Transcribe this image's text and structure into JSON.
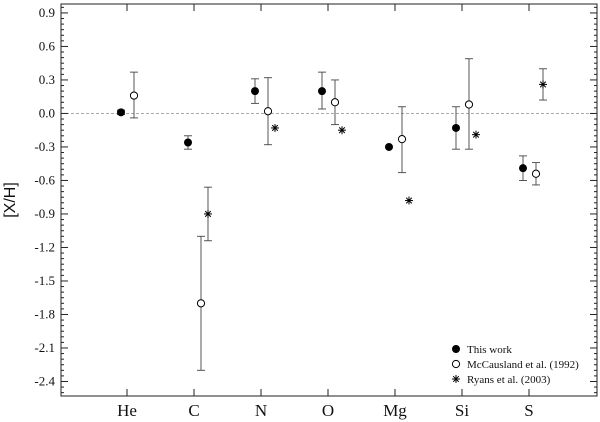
{
  "chart_data": {
    "type": "scatter",
    "title": "",
    "xlabel": "",
    "ylabel": "[X/H]",
    "categories": [
      "He",
      "C",
      "N",
      "O",
      "Mg",
      "Si",
      "S"
    ],
    "ylim": [
      -2.53,
      0.98
    ],
    "yticks": [
      0.9,
      0.6,
      0.3,
      0.0,
      -0.3,
      -0.6,
      -0.9,
      -1.2,
      -1.5,
      -1.8,
      -2.1,
      -2.4
    ],
    "ytick_labels": [
      "0.9",
      "0.6",
      "0.3",
      "0.0",
      "-0.3",
      "-0.6",
      "-0.9",
      "-1.2",
      "-1.5",
      "-1.8",
      "-2.1",
      "-2.4"
    ],
    "reference_line": 0.0,
    "grid": false,
    "legend_position": "bottom-right",
    "series": [
      {
        "name": "This work",
        "marker": "filled-circle",
        "points": [
          {
            "category": "He",
            "y": 0.01,
            "err_low": 0.02,
            "err_high": 0.02
          },
          {
            "category": "C",
            "y": -0.26,
            "err_low": 0.06,
            "err_high": 0.06
          },
          {
            "category": "N",
            "y": 0.2,
            "err_low": 0.11,
            "err_high": 0.11
          },
          {
            "category": "O",
            "y": 0.2,
            "err_low": 0.16,
            "err_high": 0.17
          },
          {
            "category": "Mg",
            "y": -0.3,
            "err_low": null,
            "err_high": null
          },
          {
            "category": "Si",
            "y": -0.13,
            "err_low": 0.19,
            "err_high": 0.19
          },
          {
            "category": "S",
            "y": -0.49,
            "err_low": 0.11,
            "err_high": 0.11
          }
        ]
      },
      {
        "name": "McCausland et al. (1992)",
        "marker": "open-circle",
        "points": [
          {
            "category": "He",
            "y": 0.16,
            "err_low": 0.2,
            "err_high": 0.21
          },
          {
            "category": "C",
            "y": -1.7,
            "err_low": 0.6,
            "err_high": 0.6
          },
          {
            "category": "N",
            "y": 0.02,
            "err_low": 0.3,
            "err_high": 0.3
          },
          {
            "category": "O",
            "y": 0.1,
            "err_low": 0.2,
            "err_high": 0.2
          },
          {
            "category": "Mg",
            "y": -0.23,
            "err_low": 0.3,
            "err_high": 0.29
          },
          {
            "category": "Si",
            "y": 0.08,
            "err_low": 0.4,
            "err_high": 0.41
          },
          {
            "category": "S",
            "y": -0.54,
            "err_low": 0.1,
            "err_high": 0.1
          }
        ]
      },
      {
        "name": "Ryans et al. (2003)",
        "marker": "asterisk",
        "points": [
          {
            "category": "C",
            "y": -0.9,
            "err_low": 0.24,
            "err_high": 0.24
          },
          {
            "category": "N",
            "y": -0.13,
            "err_low": null,
            "err_high": null
          },
          {
            "category": "O",
            "y": -0.15,
            "err_low": null,
            "err_high": null
          },
          {
            "category": "Mg",
            "y": -0.78,
            "err_low": null,
            "err_high": null
          },
          {
            "category": "Si",
            "y": -0.19,
            "err_low": null,
            "err_high": null
          },
          {
            "category": "S",
            "y": 0.26,
            "err_low": 0.14,
            "err_high": 0.14
          }
        ]
      }
    ]
  }
}
